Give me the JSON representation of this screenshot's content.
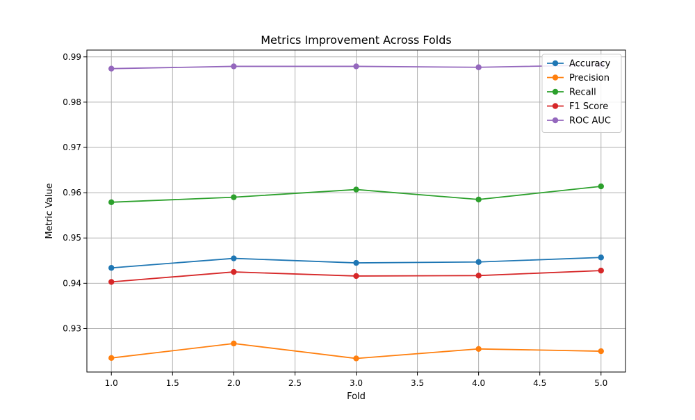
{
  "chart_data": {
    "type": "line",
    "title": "Metrics Improvement Across Folds",
    "xlabel": "Fold",
    "ylabel": "Metric Value",
    "xlim": [
      0.8,
      5.2
    ],
    "ylim": [
      0.9204,
      0.9915
    ],
    "x_ticks": [
      "1.0",
      "1.5",
      "2.0",
      "2.5",
      "3.0",
      "3.5",
      "4.0",
      "4.5",
      "5.0"
    ],
    "y_ticks": [
      "0.93",
      "0.94",
      "0.95",
      "0.96",
      "0.97",
      "0.98",
      "0.99"
    ],
    "grid": true,
    "legend_position": "top-right",
    "x": [
      1,
      2,
      3,
      4,
      5
    ],
    "series": [
      {
        "name": "Accuracy",
        "color": "#1f77b4",
        "values": [
          0.9434,
          0.9455,
          0.9445,
          0.9447,
          0.9457
        ]
      },
      {
        "name": "Precision",
        "color": "#ff7f0e",
        "values": [
          0.9235,
          0.9267,
          0.9234,
          0.9255,
          0.925
        ]
      },
      {
        "name": "Recall",
        "color": "#2ca02c",
        "values": [
          0.9579,
          0.959,
          0.9607,
          0.9585,
          0.9614
        ]
      },
      {
        "name": "F1 Score",
        "color": "#d62728",
        "values": [
          0.9403,
          0.9425,
          0.9416,
          0.9417,
          0.9428
        ]
      },
      {
        "name": "ROC AUC",
        "color": "#9467bd",
        "values": [
          0.9874,
          0.9879,
          0.9879,
          0.9877,
          0.9882
        ]
      }
    ]
  }
}
